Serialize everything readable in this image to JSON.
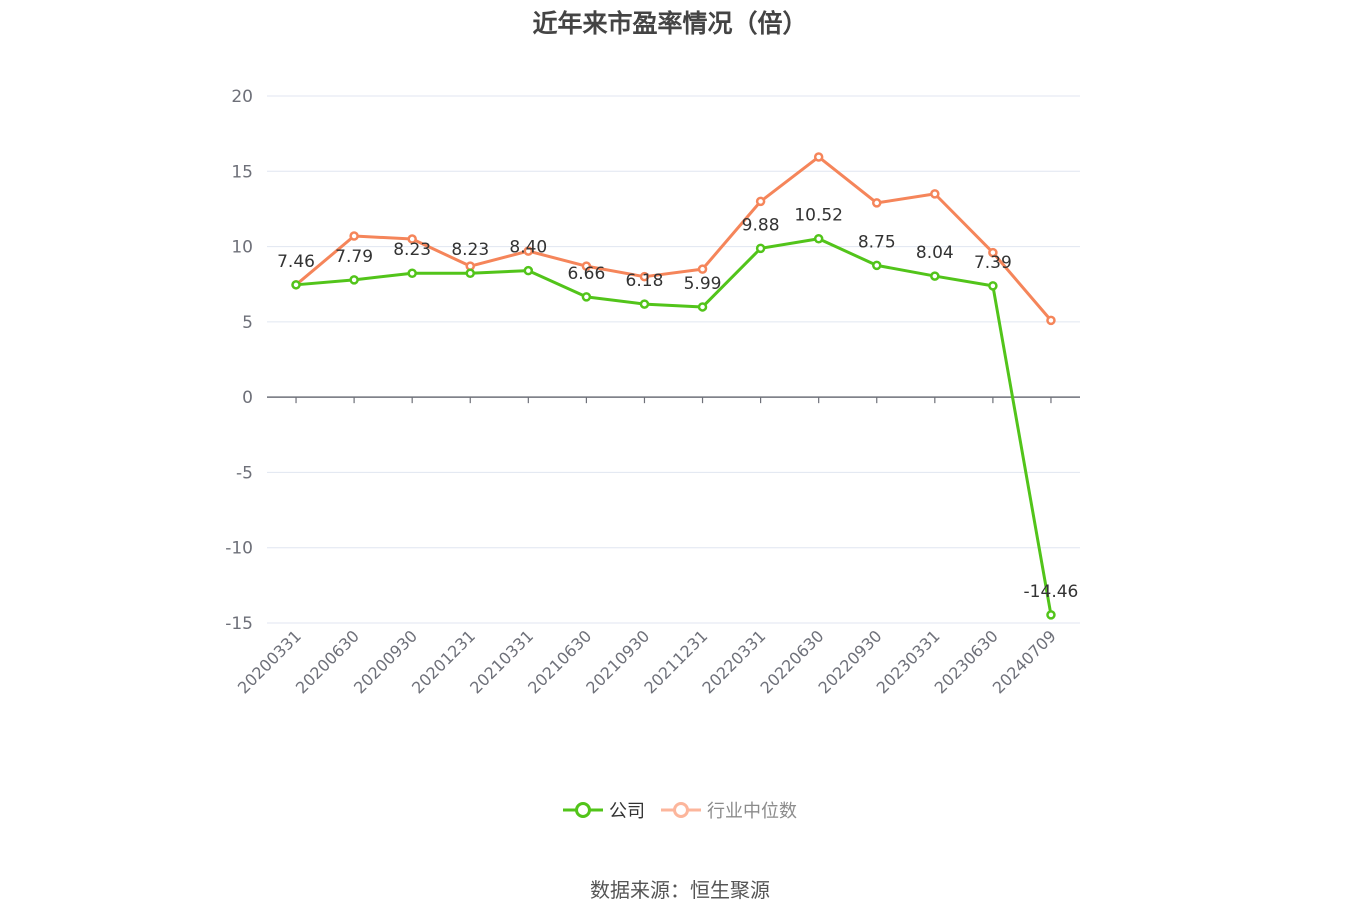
{
  "title": "近年来市盈率情况（倍）",
  "legend": [
    {
      "label": "公司",
      "color": "#52c41a",
      "text_color": "#333333"
    },
    {
      "label": "行业中位数",
      "color": "#fcb69c",
      "text_color": "#8c8c8c"
    }
  ],
  "source": "数据来源：恒生聚源",
  "colors": {
    "company": "#52c41a",
    "industry": "#f5855a",
    "grid": "#e0e6f1",
    "axis": "#6e7079",
    "label": "#333333",
    "tick_text": "#6e7079"
  },
  "chart_data": {
    "type": "line",
    "title": "近年来市盈率情况（倍）",
    "xlabel": "",
    "ylabel": "",
    "ylim": [
      -15,
      20
    ],
    "yticks": [
      20,
      15,
      10,
      5,
      0,
      -5,
      -10,
      -15
    ],
    "grid": true,
    "legend_position": "bottom",
    "categories": [
      "20200331",
      "20200630",
      "20200930",
      "20201231",
      "20210331",
      "20210630",
      "20210930",
      "20211231",
      "20220331",
      "20220630",
      "20220930",
      "20230331",
      "20230630",
      "20240709"
    ],
    "series": [
      {
        "name": "公司",
        "values": [
          7.46,
          7.79,
          8.23,
          8.23,
          8.4,
          6.66,
          6.18,
          5.99,
          9.88,
          10.52,
          8.75,
          8.04,
          7.39,
          -14.46
        ],
        "labels": [
          "7.46",
          "7.79",
          "8.23",
          "8.23",
          "8.40",
          "6.66",
          "6.18",
          "5.99",
          "9.88",
          "10.52",
          "8.75",
          "8.04",
          "7.39",
          "-14.46"
        ]
      },
      {
        "name": "行业中位数",
        "values": [
          7.46,
          10.7,
          10.5,
          8.7,
          9.7,
          8.7,
          8.0,
          8.5,
          13.0,
          15.95,
          12.9,
          13.5,
          9.6,
          5.1
        ]
      }
    ]
  }
}
